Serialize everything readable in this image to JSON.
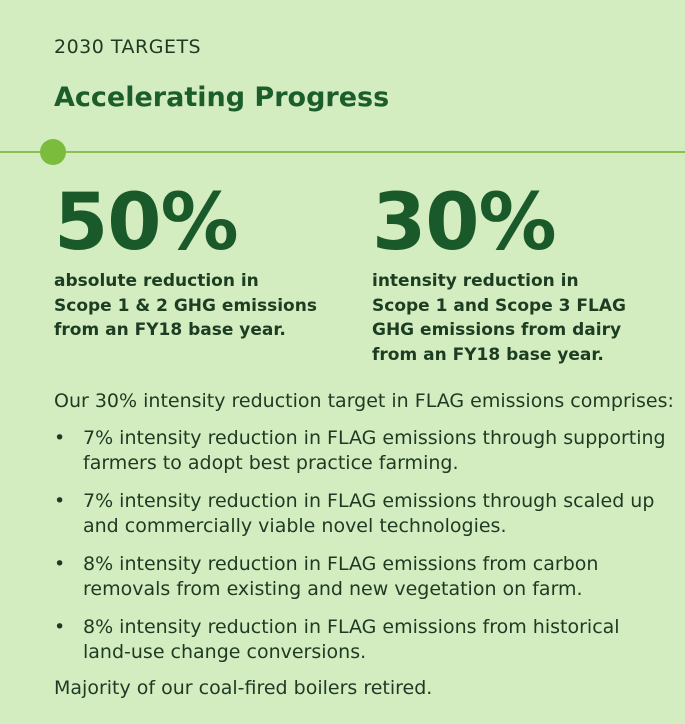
{
  "header": {
    "eyebrow": "2030 TARGETS",
    "title": "Accelerating Progress"
  },
  "stats": [
    {
      "value": "50%",
      "lines": [
        "absolute reduction in",
        "Scope 1 & 2 GHG emissions",
        "from an FY18 base year."
      ]
    },
    {
      "value": "30%",
      "lines": [
        "intensity reduction in",
        "Scope 1 and Scope 3 FLAG",
        "GHG emissions from dairy",
        "from an FY18 base year."
      ]
    }
  ],
  "intro": "Our 30% intensity reduction target in FLAG emissions comprises:",
  "bullet_mark": "•",
  "bullets": [
    {
      "lines": [
        "7% intensity reduction in FLAG emissions through supporting",
        "farmers to adopt best practice farming."
      ]
    },
    {
      "lines": [
        "7% intensity reduction in FLAG emissions through scaled up",
        "and commercially viable novel technologies."
      ]
    },
    {
      "lines": [
        "8% intensity reduction in FLAG emissions from carbon",
        "removals from existing and new vegetation on farm."
      ]
    },
    {
      "lines": [
        "8% intensity reduction in FLAG emissions from historical",
        "land-use change conversions."
      ]
    }
  ],
  "closing": "Majority of our coal-fired boilers retired.",
  "colors": {
    "background": "#d3ecc0",
    "heading_green": "#1b5e2b",
    "accent_green": "#7cbc3d",
    "text": "#1e3a23"
  }
}
